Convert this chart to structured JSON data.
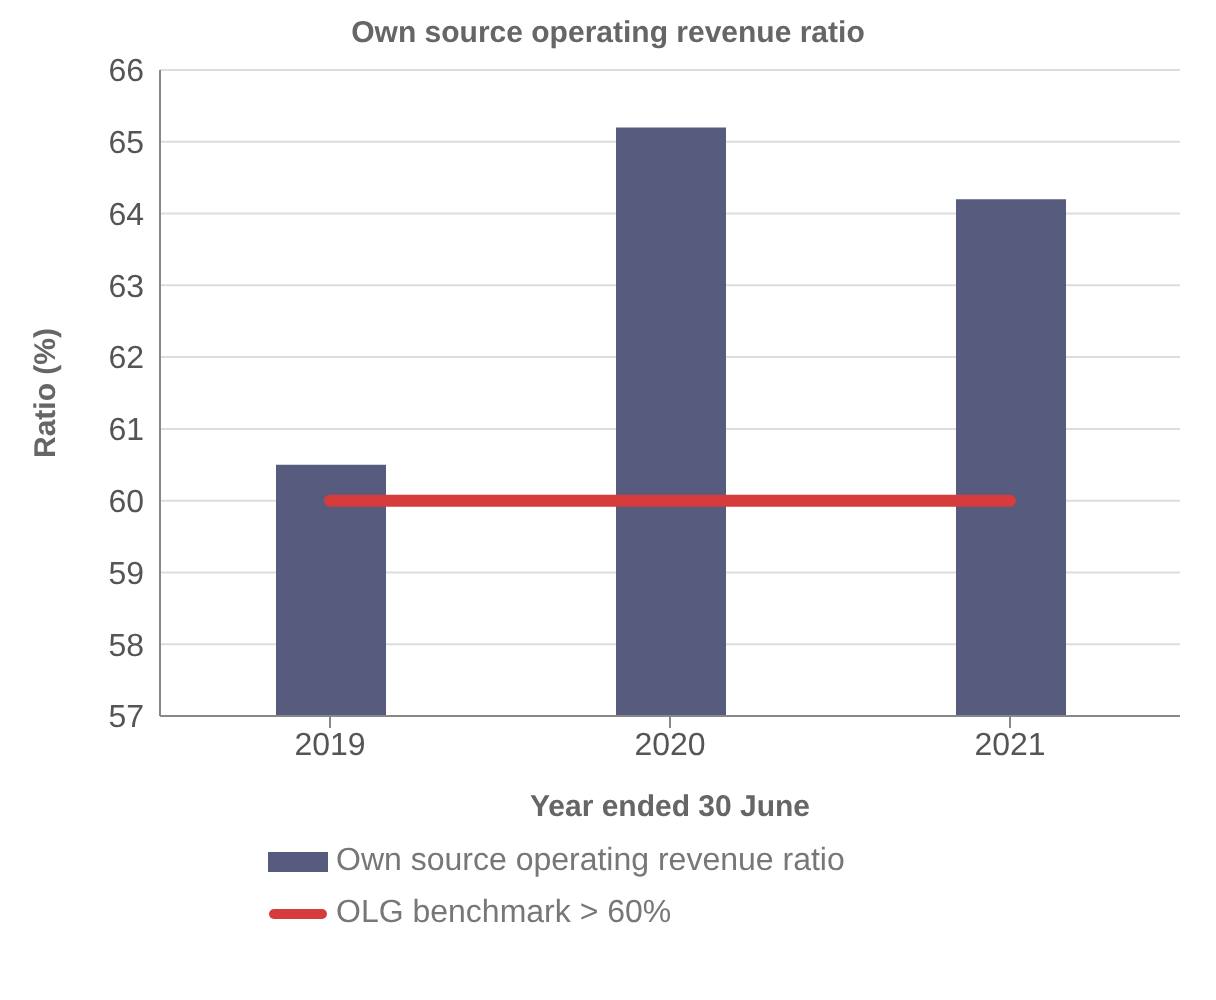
{
  "chart_data": {
    "type": "bar",
    "title": "Own source operating revenue ratio",
    "xlabel": "Year ended 30 June",
    "ylabel": "Ratio (%)",
    "categories": [
      "2019",
      "2020",
      "2021"
    ],
    "series": [
      {
        "name": "Own source operating revenue ratio",
        "color": "#575c7e",
        "values": [
          60.5,
          65.2,
          64.2
        ]
      },
      {
        "name": "OLG benchmark > 60%",
        "type": "line",
        "color": "#d63c3c",
        "values": [
          60,
          60,
          60
        ]
      }
    ],
    "ylim": [
      57,
      66
    ],
    "yticks": [
      57,
      58,
      59,
      60,
      61,
      62,
      63,
      64,
      65,
      66
    ],
    "grid": "y",
    "legend": "bottom",
    "marker": "none"
  }
}
